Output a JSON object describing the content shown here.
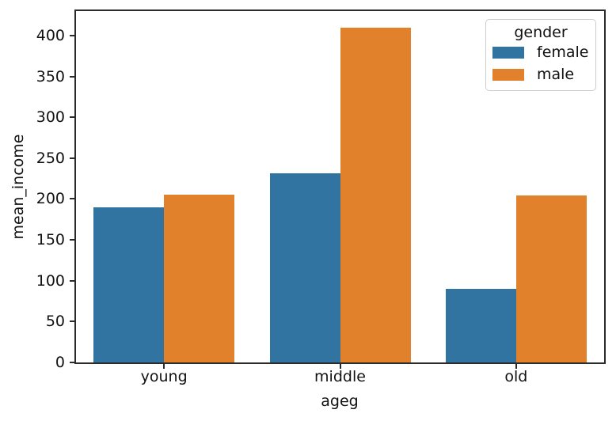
{
  "chart_data": {
    "type": "bar",
    "title": "",
    "xlabel": "ageg",
    "ylabel": "mean_income",
    "categories": [
      "young",
      "middle",
      "old"
    ],
    "series": [
      {
        "name": "female",
        "color": "#3274a1",
        "values": [
          190,
          231,
          90
        ]
      },
      {
        "name": "male",
        "color": "#e1812c",
        "values": [
          205,
          410,
          204
        ]
      }
    ],
    "yticks": [
      0,
      50,
      100,
      150,
      200,
      250,
      300,
      350,
      400
    ],
    "ylim": [
      0,
      430
    ],
    "grid": false,
    "legend": {
      "title": "gender",
      "position": "upper right",
      "entries": [
        "female",
        "male"
      ]
    }
  },
  "style": {
    "bar_female": "#3274a1",
    "bar_male": "#e1812c",
    "frame": "#2b2b2b",
    "text": "#111111",
    "legend_border": "#cccccc",
    "background": "#ffffff"
  }
}
